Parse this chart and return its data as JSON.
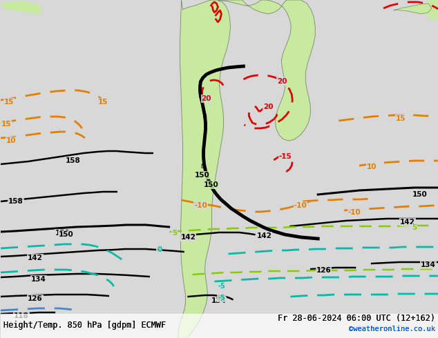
{
  "title_left": "Height/Temp. 850 hPa [gdpm] ECMWF",
  "title_right": "Fr 28-06-2024 06:00 UTC (12+162)",
  "copyright": "©weatheronline.co.uk",
  "bg_color": "#d8d8d8",
  "land_color": "#c8eaa0",
  "border_color": "#808080",
  "fig_width": 6.34,
  "fig_height": 4.9,
  "dpi": 100,
  "black_lw": 2.0,
  "thick_lw": 3.0,
  "orange_color": "#e08000",
  "red_color": "#dd0000",
  "yg_color": "#88cc00",
  "cyan_color": "#00bbaa",
  "blue_color": "#0055cc"
}
